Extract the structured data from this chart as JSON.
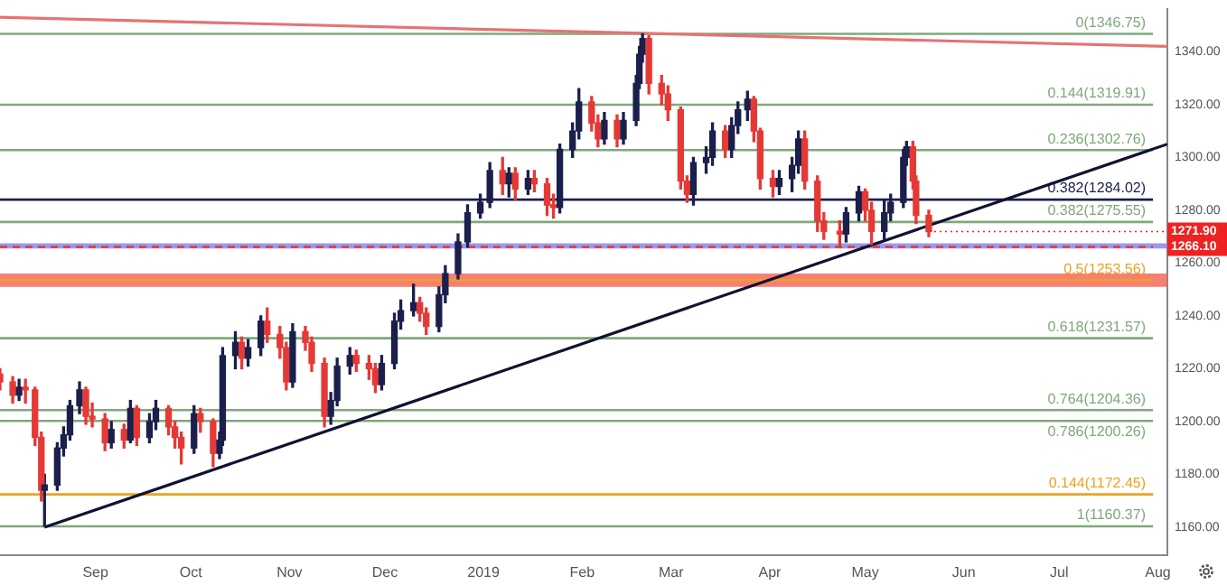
{
  "chart_data": {
    "type": "candlestick",
    "x": [
      "2018-08-02",
      "2018-08-06",
      "2018-08-08",
      "2018-08-10",
      "2018-08-13",
      "2018-08-15",
      "2018-08-16",
      "2018-08-20",
      "2018-08-22",
      "2018-08-24",
      "2018-08-27",
      "2018-08-29",
      "2018-08-31",
      "2018-09-04",
      "2018-09-06",
      "2018-09-10",
      "2018-09-12",
      "2018-09-14",
      "2018-09-18",
      "2018-09-20",
      "2018-09-24",
      "2018-09-26",
      "2018-09-28",
      "2018-10-02",
      "2018-10-04",
      "2018-10-08",
      "2018-10-10",
      "2018-10-11",
      "2018-10-15",
      "2018-10-17",
      "2018-10-19",
      "2018-10-23",
      "2018-10-25",
      "2018-10-29",
      "2018-10-31",
      "2018-11-02",
      "2018-11-06",
      "2018-11-08",
      "2018-11-12",
      "2018-11-14",
      "2018-11-16",
      "2018-11-20",
      "2018-11-22",
      "2018-11-26",
      "2018-11-28",
      "2018-11-30",
      "2018-12-04",
      "2018-12-06",
      "2018-12-10",
      "2018-12-12",
      "2018-12-14",
      "2018-12-18",
      "2018-12-20",
      "2018-12-24",
      "2018-12-27",
      "2018-12-31",
      "2019-01-03",
      "2019-01-07",
      "2019-01-09",
      "2019-01-11",
      "2019-01-15",
      "2019-01-17",
      "2019-01-21",
      "2019-01-23",
      "2019-01-25",
      "2019-01-29",
      "2019-01-31",
      "2019-02-04",
      "2019-02-06",
      "2019-02-08",
      "2019-02-12",
      "2019-02-14",
      "2019-02-18",
      "2019-02-19",
      "2019-02-20",
      "2019-02-22",
      "2019-02-26",
      "2019-02-28",
      "2019-03-04",
      "2019-03-06",
      "2019-03-08",
      "2019-03-12",
      "2019-03-14",
      "2019-03-18",
      "2019-03-20",
      "2019-03-22",
      "2019-03-25",
      "2019-03-27",
      "2019-03-29",
      "2019-04-02",
      "2019-04-04",
      "2019-04-08",
      "2019-04-10",
      "2019-04-12",
      "2019-04-16",
      "2019-04-18",
      "2019-04-23",
      "2019-04-25",
      "2019-04-29",
      "2019-05-01",
      "2019-05-03",
      "2019-05-07",
      "2019-05-09",
      "2019-05-13",
      "2019-05-14",
      "2019-05-16",
      "2019-05-17",
      "2019-05-21"
    ],
    "ohlc": [
      [
        1218,
        1220,
        1212,
        1215
      ],
      [
        1215,
        1217,
        1207,
        1210
      ],
      [
        1210,
        1216,
        1208,
        1213
      ],
      [
        1213,
        1216,
        1207,
        1212
      ],
      [
        1212,
        1213,
        1191,
        1194
      ],
      [
        1194,
        1196,
        1170,
        1174
      ],
      [
        1174,
        1180,
        1160.37,
        1176
      ],
      [
        1176,
        1192,
        1174,
        1190
      ],
      [
        1190,
        1198,
        1187,
        1195
      ],
      [
        1195,
        1208,
        1193,
        1206
      ],
      [
        1206,
        1215,
        1203,
        1212
      ],
      [
        1212,
        1213,
        1199,
        1202
      ],
      [
        1202,
        1207,
        1198,
        1201
      ],
      [
        1201,
        1203,
        1189,
        1192
      ],
      [
        1192,
        1200,
        1190,
        1197
      ],
      [
        1197,
        1199,
        1190,
        1193
      ],
      [
        1193,
        1208,
        1192,
        1205
      ],
      [
        1205,
        1206,
        1191,
        1194
      ],
      [
        1194,
        1203,
        1192,
        1200
      ],
      [
        1200,
        1208,
        1197,
        1205
      ],
      [
        1205,
        1206,
        1195,
        1198
      ],
      [
        1198,
        1200,
        1190,
        1194
      ],
      [
        1194,
        1196,
        1184,
        1190
      ],
      [
        1190,
        1206,
        1188,
        1203
      ],
      [
        1203,
        1205,
        1196,
        1200
      ],
      [
        1200,
        1201,
        1183,
        1188
      ],
      [
        1188,
        1196,
        1186,
        1193
      ],
      [
        1193,
        1228,
        1191,
        1225
      ],
      [
        1225,
        1234,
        1220,
        1230
      ],
      [
        1230,
        1232,
        1220,
        1224
      ],
      [
        1224,
        1231,
        1221,
        1228
      ],
      [
        1228,
        1240,
        1225,
        1238
      ],
      [
        1238,
        1243,
        1230,
        1233
      ],
      [
        1233,
        1236,
        1224,
        1228
      ],
      [
        1228,
        1230,
        1212,
        1215
      ],
      [
        1215,
        1237,
        1213,
        1234
      ],
      [
        1234,
        1236,
        1227,
        1230
      ],
      [
        1230,
        1232,
        1219,
        1222
      ],
      [
        1222,
        1224,
        1198,
        1202
      ],
      [
        1202,
        1211,
        1199,
        1208
      ],
      [
        1208,
        1224,
        1206,
        1221
      ],
      [
        1221,
        1228,
        1218,
        1225
      ],
      [
        1225,
        1227,
        1219,
        1222
      ],
      [
        1222,
        1225,
        1216,
        1220
      ],
      [
        1220,
        1222,
        1211,
        1214
      ],
      [
        1214,
        1225,
        1212,
        1222
      ],
      [
        1222,
        1241,
        1220,
        1238
      ],
      [
        1238,
        1246,
        1235,
        1242
      ],
      [
        1242,
        1252,
        1240,
        1245
      ],
      [
        1245,
        1247,
        1238,
        1241
      ],
      [
        1241,
        1243,
        1233,
        1236
      ],
      [
        1236,
        1251,
        1234,
        1248
      ],
      [
        1248,
        1259,
        1245,
        1256
      ],
      [
        1256,
        1271,
        1254,
        1268
      ],
      [
        1268,
        1282,
        1266,
        1279
      ],
      [
        1279,
        1286,
        1277,
        1283
      ],
      [
        1283,
        1298,
        1281,
        1295
      ],
      [
        1295,
        1300,
        1286,
        1290
      ],
      [
        1290,
        1296,
        1285,
        1294
      ],
      [
        1294,
        1296,
        1284,
        1288
      ],
      [
        1288,
        1295,
        1286,
        1292
      ],
      [
        1292,
        1295,
        1287,
        1290
      ],
      [
        1290,
        1292,
        1278,
        1282
      ],
      [
        1282,
        1286,
        1277,
        1281
      ],
      [
        1281,
        1305,
        1279,
        1303
      ],
      [
        1303,
        1313,
        1300,
        1310
      ],
      [
        1310,
        1326,
        1307,
        1321
      ],
      [
        1321,
        1323,
        1310,
        1313
      ],
      [
        1313,
        1316,
        1304,
        1307
      ],
      [
        1307,
        1317,
        1305,
        1314
      ],
      [
        1314,
        1316,
        1304,
        1307
      ],
      [
        1307,
        1317,
        1305,
        1314
      ],
      [
        1314,
        1331,
        1312,
        1328
      ],
      [
        1328,
        1342,
        1326,
        1339
      ],
      [
        1339,
        1346.75,
        1336,
        1345
      ],
      [
        1345,
        1346,
        1324,
        1328
      ],
      [
        1328,
        1331,
        1320,
        1324
      ],
      [
        1324,
        1327,
        1314,
        1318
      ],
      [
        1318,
        1319,
        1288,
        1291
      ],
      [
        1291,
        1293,
        1283,
        1286
      ],
      [
        1286,
        1300,
        1282,
        1298
      ],
      [
        1298,
        1304,
        1294,
        1300
      ],
      [
        1300,
        1313,
        1297,
        1310
      ],
      [
        1310,
        1312,
        1300,
        1303
      ],
      [
        1303,
        1315,
        1300,
        1312
      ],
      [
        1312,
        1321,
        1309,
        1318
      ],
      [
        1318,
        1325,
        1314,
        1322
      ],
      [
        1322,
        1323,
        1306,
        1310
      ],
      [
        1310,
        1311,
        1288,
        1292
      ],
      [
        1292,
        1295,
        1285,
        1289
      ],
      [
        1289,
        1295,
        1286,
        1292
      ],
      [
        1292,
        1300,
        1287,
        1297
      ],
      [
        1297,
        1310,
        1294,
        1307
      ],
      [
        1307,
        1310,
        1288,
        1291
      ],
      [
        1291,
        1293,
        1272,
        1276
      ],
      [
        1276,
        1279,
        1269,
        1272
      ],
      [
        1272,
        1276,
        1266,
        1271
      ],
      [
        1271,
        1281,
        1268,
        1279
      ],
      [
        1279,
        1289,
        1276,
        1287
      ],
      [
        1287,
        1288,
        1276,
        1280
      ],
      [
        1280,
        1283,
        1267,
        1272
      ],
      [
        1272,
        1284,
        1269,
        1279
      ],
      [
        1279,
        1286,
        1276,
        1283
      ],
      [
        1283,
        1303,
        1281,
        1300
      ],
      [
        1300,
        1306,
        1297,
        1304
      ],
      [
        1304,
        1306,
        1288,
        1291
      ],
      [
        1291,
        1293,
        1275,
        1278
      ],
      [
        1278,
        1280,
        1270,
        1271.9
      ]
    ],
    "colors": [
      "#e53935",
      "#e53935",
      "#1b1f4b",
      "#e53935",
      "#e53935",
      "#e53935",
      "#1b1f4b",
      "#1b1f4b",
      "#1b1f4b",
      "#1b1f4b",
      "#1b1f4b",
      "#e53935",
      "#e53935",
      "#e53935",
      "#1b1f4b",
      "#e53935",
      "#1b1f4b",
      "#e53935",
      "#1b1f4b",
      "#1b1f4b",
      "#e53935",
      "#e53935",
      "#e53935",
      "#1b1f4b",
      "#e53935",
      "#e53935",
      "#1b1f4b",
      "#1b1f4b",
      "#1b1f4b",
      "#e53935",
      "#1b1f4b",
      "#1b1f4b",
      "#e53935",
      "#e53935",
      "#e53935",
      "#1b1f4b",
      "#e53935",
      "#e53935",
      "#e53935",
      "#1b1f4b",
      "#1b1f4b",
      "#1b1f4b",
      "#e53935",
      "#e53935",
      "#e53935",
      "#1b1f4b",
      "#1b1f4b",
      "#1b1f4b",
      "#1b1f4b",
      "#e53935",
      "#e53935",
      "#1b1f4b",
      "#1b1f4b",
      "#1b1f4b",
      "#1b1f4b",
      "#1b1f4b",
      "#1b1f4b",
      "#e53935",
      "#1b1f4b",
      "#e53935",
      "#1b1f4b",
      "#e53935",
      "#e53935",
      "#e53935",
      "#1b1f4b",
      "#1b1f4b",
      "#1b1f4b",
      "#e53935",
      "#e53935",
      "#1b1f4b",
      "#e53935",
      "#1b1f4b",
      "#1b1f4b",
      "#1b1f4b",
      "#1b1f4b",
      "#e53935",
      "#e53935",
      "#e53935",
      "#e53935",
      "#e53935",
      "#1b1f4b",
      "#1b1f4b",
      "#1b1f4b",
      "#e53935",
      "#1b1f4b",
      "#1b1f4b",
      "#1b1f4b",
      "#e53935",
      "#e53935",
      "#e53935",
      "#1b1f4b",
      "#1b1f4b",
      "#1b1f4b",
      "#e53935",
      "#e53935",
      "#e53935",
      "#e53935",
      "#1b1f4b",
      "#1b1f4b",
      "#e53935",
      "#e53935",
      "#1b1f4b",
      "#1b1f4b",
      "#1b1f4b",
      "#1b1f4b",
      "#e53935",
      "#e53935",
      "#e53935"
    ],
    "series": [
      {
        "type": "line",
        "x": [
          "2018-08-16",
          "2019-08-04"
        ],
        "values": [
          1160,
          1305
        ],
        "color": "#111133"
      },
      {
        "type": "line",
        "x": [
          "2018-08-02",
          "2019-08-04"
        ],
        "values": [
          1353,
          1342
        ],
        "color": "#e57373"
      }
    ],
    "xlim": [
      "2018-08-02",
      "2019-08-04"
    ],
    "xticks": [
      {
        "value": "2018-09-01",
        "label": "Sep"
      },
      {
        "value": "2018-10-01",
        "label": "Oct"
      },
      {
        "value": "2018-11-01",
        "label": "Nov"
      },
      {
        "value": "2018-12-01",
        "label": "Dec"
      },
      {
        "value": "2019-01-01",
        "label": "2019"
      },
      {
        "value": "2019-02-01",
        "label": "Feb"
      },
      {
        "value": "2019-03-01",
        "label": "Mar"
      },
      {
        "value": "2019-04-01",
        "label": "Apr"
      },
      {
        "value": "2019-05-01",
        "label": "May"
      },
      {
        "value": "2019-06-01",
        "label": "Jun"
      },
      {
        "value": "2019-07-01",
        "label": "Jul"
      },
      {
        "value": "2019-08-01",
        "label": "Aug"
      }
    ],
    "ylim": [
      1149.5,
      1356
    ],
    "yticks": [
      {
        "value": 1160,
        "label": "1160.00"
      },
      {
        "value": 1180,
        "label": "1180.00"
      },
      {
        "value": 1200,
        "label": "1200.00"
      },
      {
        "value": 1220,
        "label": "1220.00"
      },
      {
        "value": 1240,
        "label": "1240.00"
      },
      {
        "value": 1260,
        "label": "1260.00"
      },
      {
        "value": 1280,
        "label": "1280.00"
      },
      {
        "value": 1300,
        "label": "1300.00"
      },
      {
        "value": 1320,
        "label": "1320.00"
      },
      {
        "value": 1340,
        "label": "1340.00"
      }
    ],
    "bands": [
      {
        "axis": "y",
        "from": 1251,
        "to": 1256,
        "color": "#f06050"
      },
      {
        "axis": "y",
        "from": 1265.5,
        "to": 1267.5,
        "color": "#8080ee"
      }
    ],
    "ref_lines": [
      {
        "axis": "y",
        "value": 1346.75,
        "label": "0(1346.75)",
        "color": "#7fa87a"
      },
      {
        "axis": "y",
        "value": 1319.91,
        "label": "0.144(1319.91)",
        "color": "#7fa87a"
      },
      {
        "axis": "y",
        "value": 1302.76,
        "label": "0.236(1302.76)",
        "color": "#7fa87a"
      },
      {
        "axis": "y",
        "value": 1284.02,
        "label": "0.382(1284.02)",
        "color": "#1b1f4b"
      },
      {
        "axis": "y",
        "value": 1275.55,
        "label": "0.382(1275.55)",
        "color": "#7fa87a"
      },
      {
        "axis": "y",
        "value": 1266.1,
        "label": "1266.10",
        "color": "#e53935",
        "line_style": "dashed"
      },
      {
        "axis": "y",
        "value": 1253.56,
        "label": "0.5(1253.56)",
        "color": "#f0a020"
      },
      {
        "axis": "y",
        "value": 1231.57,
        "label": "0.618(1231.57)",
        "color": "#7fa87a"
      },
      {
        "axis": "y",
        "value": 1204.36,
        "label": "0.764(1204.36)",
        "color": "#7fa87a"
      },
      {
        "axis": "y",
        "value": 1200.26,
        "label": "0.786(1200.26)",
        "color": "#7fa87a"
      },
      {
        "axis": "y",
        "value": 1172.45,
        "label": "0.144(1172.45)",
        "color": "#f0a020"
      },
      {
        "axis": "y",
        "value": 1160.37,
        "label": "1(1160.37)",
        "color": "#7fa87a"
      }
    ],
    "annotations": [
      {
        "text": "1271.90",
        "x": "2019-05-21",
        "y": 1271.9
      }
    ]
  }
}
